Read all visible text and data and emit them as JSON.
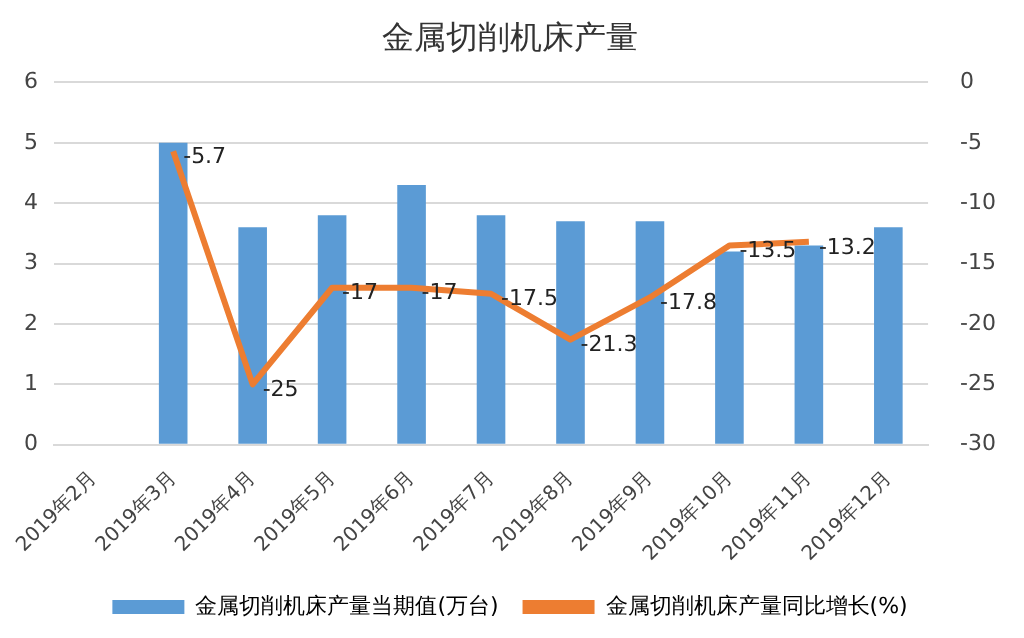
{
  "chart_data": {
    "type": "bar",
    "title": "金属切削机床产量",
    "categories": [
      "2019年2月",
      "2019年3月",
      "2019年4月",
      "2019年5月",
      "2019年6月",
      "2019年7月",
      "2019年8月",
      "2019年9月",
      "2019年10月",
      "2019年11月",
      "2019年12月"
    ],
    "series": [
      {
        "name": "金属切削机床产量当期值(万台)",
        "color": "#5b9bd5",
        "values": [
          null,
          5.0,
          3.6,
          3.8,
          4.3,
          3.8,
          3.7,
          3.7,
          3.2,
          3.3,
          3.6
        ]
      },
      {
        "name": "金属切削机床产量同比增长(%)",
        "type": "line",
        "axis": "y2",
        "color": "#ed7d31",
        "data_labels": true,
        "values": [
          null,
          -5.7,
          -25,
          -17,
          -17,
          -17.5,
          -21.3,
          -17.8,
          -13.5,
          -13.2,
          null
        ]
      }
    ],
    "ylim": [
      0,
      6
    ],
    "yticks": [
      0,
      1,
      2,
      3,
      4,
      5,
      6
    ],
    "y2lim": [
      -30,
      0
    ],
    "y2ticks": [
      -30,
      -25,
      -20,
      -15,
      -10,
      -5,
      0
    ],
    "grid": "y",
    "legend": "bottom",
    "marker": "none"
  }
}
